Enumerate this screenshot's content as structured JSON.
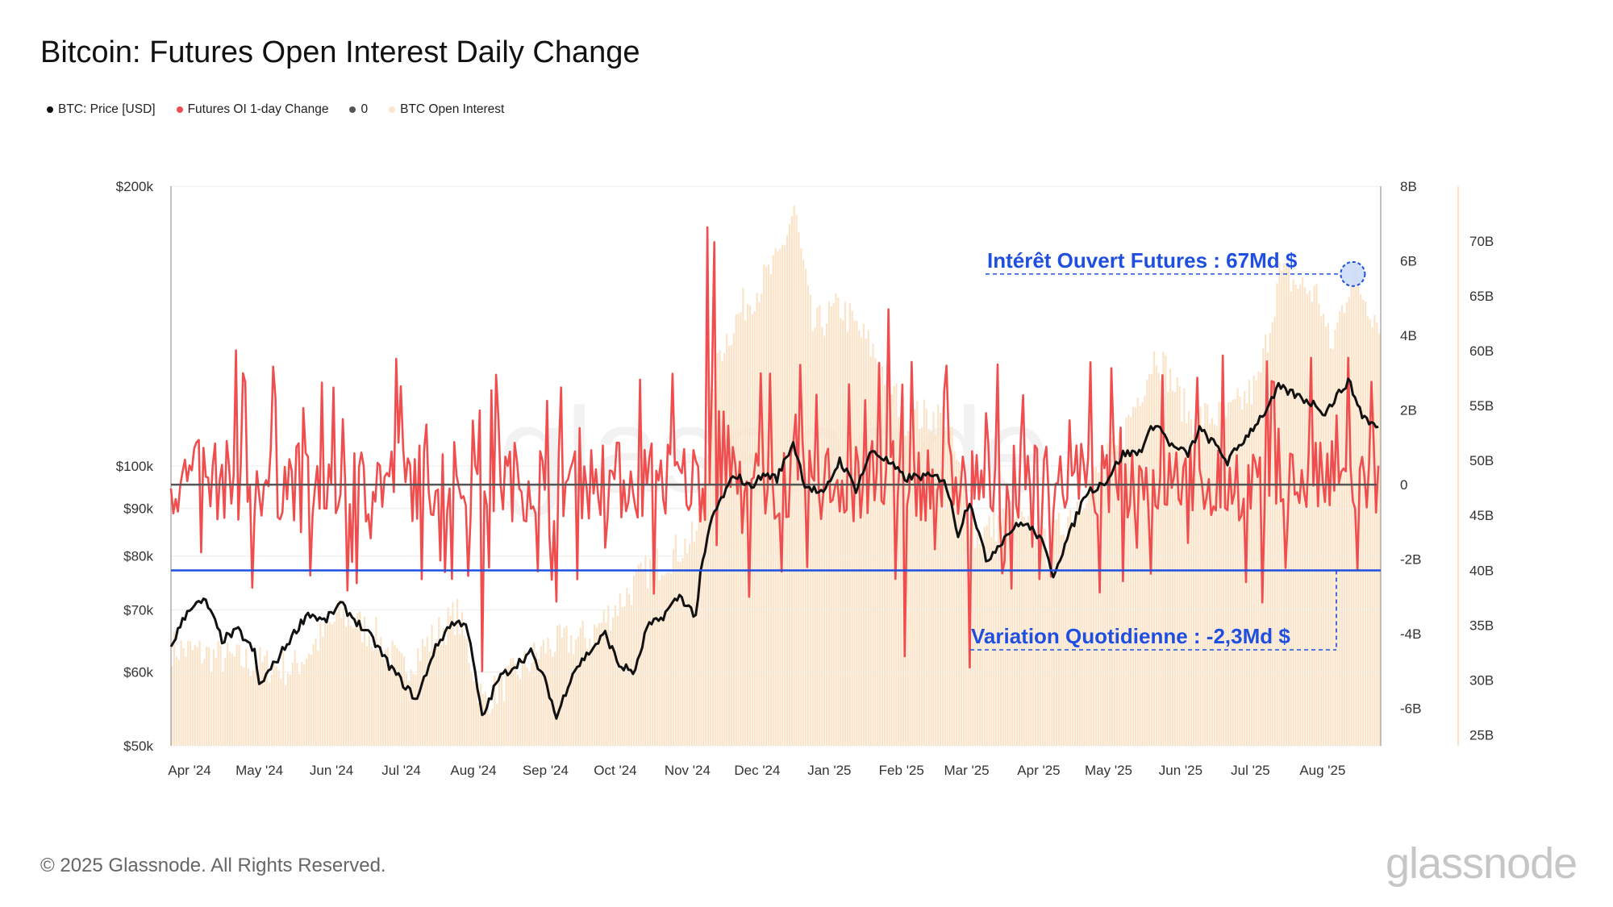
{
  "title": "Bitcoin: Futures Open Interest Daily Change",
  "legend": [
    {
      "label": "BTC: Price [USD]",
      "color": "#111111"
    },
    {
      "label": "Futures OI 1-day Change",
      "color": "#f04e4e"
    },
    {
      "label": "0",
      "color": "#555555"
    },
    {
      "label": "BTC Open Interest",
      "color": "#fbe6cf"
    }
  ],
  "footer": "© 2025 Glassnode. All Rights Reserved.",
  "watermark": "glassnode",
  "colors": {
    "price": "#111111",
    "oi_change": "#f04e4e",
    "zero": "#555555",
    "open_interest": "#fbe3c8",
    "annotation": "#1f4fe0"
  },
  "chart_data": {
    "type": "line",
    "x_axis": {
      "type": "date",
      "range": [
        "2024-03-24",
        "2025-08-26"
      ],
      "tick_labels": [
        "Apr '24",
        "May '24",
        "Jun '24",
        "Jul '24",
        "Aug '24",
        "Sep '24",
        "Oct '24",
        "Nov '24",
        "Dec '24",
        "Jan '25",
        "Feb '25",
        "Mar '25",
        "Apr '25",
        "May '25",
        "Jun '25",
        "Jul '25",
        "Aug '25"
      ],
      "tick_dates": [
        "2024-04-01",
        "2024-05-01",
        "2024-06-01",
        "2024-07-01",
        "2024-08-01",
        "2024-09-01",
        "2024-10-01",
        "2024-11-01",
        "2024-12-01",
        "2025-01-01",
        "2025-02-01",
        "2025-03-01",
        "2025-04-01",
        "2025-05-01",
        "2025-06-01",
        "2025-07-01",
        "2025-08-01"
      ]
    },
    "y_axis_left": {
      "label": "BTC: Price [USD]",
      "scale": "log",
      "range": [
        50000,
        200000
      ],
      "ticks": [
        50000,
        60000,
        70000,
        80000,
        90000,
        100000,
        200000
      ],
      "tick_labels": [
        "$50k",
        "$60k",
        "$70k",
        "$80k",
        "$90k",
        "$100k",
        "$200k"
      ]
    },
    "y_axis_right1": {
      "label": "Futures OI 1-day Change",
      "range": [
        -7,
        8
      ],
      "unit": "B",
      "ticks": [
        -6,
        -4,
        -2,
        0,
        2,
        4,
        6,
        8
      ],
      "tick_labels": [
        "-6B",
        "-4B",
        "-2B",
        "0",
        "2B",
        "4B",
        "6B",
        "8B"
      ]
    },
    "y_axis_right2": {
      "label": "BTC Open Interest",
      "range": [
        24,
        75
      ],
      "unit": "B",
      "ticks": [
        25,
        30,
        35,
        40,
        45,
        50,
        55,
        60,
        65,
        70
      ],
      "tick_labels": [
        "25B",
        "30B",
        "35B",
        "40B",
        "45B",
        "50B",
        "55B",
        "60B",
        "65B",
        "70B"
      ]
    },
    "series": [
      {
        "name": "BTC: Price [USD]",
        "type": "line",
        "axis": "left",
        "points": [
          [
            "2024-03-24",
            64000
          ],
          [
            "2024-04-01",
            70500
          ],
          [
            "2024-04-08",
            71500
          ],
          [
            "2024-04-15",
            65000
          ],
          [
            "2024-04-22",
            66500
          ],
          [
            "2024-04-29",
            63000
          ],
          [
            "2024-05-01",
            58000
          ],
          [
            "2024-05-08",
            61500
          ],
          [
            "2024-05-15",
            65500
          ],
          [
            "2024-05-22",
            69500
          ],
          [
            "2024-05-29",
            68000
          ],
          [
            "2024-06-05",
            71000
          ],
          [
            "2024-06-12",
            68000
          ],
          [
            "2024-06-19",
            65000
          ],
          [
            "2024-06-26",
            61000
          ],
          [
            "2024-07-04",
            57500
          ],
          [
            "2024-07-08",
            56000
          ],
          [
            "2024-07-15",
            63000
          ],
          [
            "2024-07-22",
            67500
          ],
          [
            "2024-07-29",
            68000
          ],
          [
            "2024-08-05",
            53500
          ],
          [
            "2024-08-12",
            59000
          ],
          [
            "2024-08-19",
            61000
          ],
          [
            "2024-08-26",
            63000
          ],
          [
            "2024-09-02",
            58000
          ],
          [
            "2024-09-06",
            53500
          ],
          [
            "2024-09-13",
            60000
          ],
          [
            "2024-09-20",
            63000
          ],
          [
            "2024-09-27",
            66000
          ],
          [
            "2024-10-03",
            61000
          ],
          [
            "2024-10-10",
            60000
          ],
          [
            "2024-10-15",
            67000
          ],
          [
            "2024-10-21",
            68500
          ],
          [
            "2024-10-29",
            72500
          ],
          [
            "2024-11-05",
            69000
          ],
          [
            "2024-11-07",
            76000
          ],
          [
            "2024-11-12",
            88000
          ],
          [
            "2024-11-22",
            98000
          ],
          [
            "2024-11-28",
            95000
          ],
          [
            "2024-12-05",
            98000
          ],
          [
            "2024-12-10",
            97000
          ],
          [
            "2024-12-17",
            106000
          ],
          [
            "2024-12-22",
            95500
          ],
          [
            "2024-12-30",
            93000
          ],
          [
            "2025-01-06",
            101500
          ],
          [
            "2025-01-13",
            94500
          ],
          [
            "2025-01-20",
            104000
          ],
          [
            "2025-01-27",
            101000
          ],
          [
            "2025-02-03",
            97000
          ],
          [
            "2025-02-10",
            97500
          ],
          [
            "2025-02-20",
            97000
          ],
          [
            "2025-02-26",
            84500
          ],
          [
            "2025-03-03",
            92000
          ],
          [
            "2025-03-10",
            79000
          ],
          [
            "2025-03-20",
            85000
          ],
          [
            "2025-03-26",
            87000
          ],
          [
            "2025-04-02",
            84000
          ],
          [
            "2025-04-08",
            76500
          ],
          [
            "2025-04-15",
            84500
          ],
          [
            "2025-04-22",
            93500
          ],
          [
            "2025-05-01",
            96500
          ],
          [
            "2025-05-08",
            103000
          ],
          [
            "2025-05-15",
            103500
          ],
          [
            "2025-05-22",
            111500
          ],
          [
            "2025-05-29",
            105000
          ],
          [
            "2025-06-05",
            103000
          ],
          [
            "2025-06-10",
            109500
          ],
          [
            "2025-06-18",
            104500
          ],
          [
            "2025-06-22",
            101000
          ],
          [
            "2025-06-30",
            107500
          ],
          [
            "2025-07-10",
            116000
          ],
          [
            "2025-07-14",
            121500
          ],
          [
            "2025-07-22",
            119000
          ],
          [
            "2025-07-31",
            116000
          ],
          [
            "2025-08-03",
            114000
          ],
          [
            "2025-08-13",
            123500
          ],
          [
            "2025-08-19",
            113500
          ],
          [
            "2025-08-25",
            110000
          ]
        ]
      },
      {
        "name": "Futures OI 1-day Change",
        "type": "line",
        "axis": "right1",
        "peaks": [
          [
            "2024-11-10",
            6.9
          ],
          [
            "2024-11-13",
            6.5
          ],
          [
            "2025-01-27",
            4.7
          ],
          [
            "2024-04-21",
            3.6
          ],
          [
            "2025-07-28",
            3.4
          ],
          [
            "2025-08-13",
            3.4
          ],
          [
            "2025-03-03",
            -4.9
          ],
          [
            "2024-08-05",
            -5.0
          ],
          [
            "2025-02-03",
            -4.6
          ],
          [
            "2025-08-17",
            -2.3
          ]
        ]
      },
      {
        "name": "0",
        "type": "line",
        "axis": "right1",
        "value": 0
      },
      {
        "name": "BTC Open Interest",
        "type": "bar",
        "axis": "right2",
        "points": [
          [
            "2024-03-24",
            33
          ],
          [
            "2024-04-15",
            32
          ],
          [
            "2024-05-15",
            31
          ],
          [
            "2024-06-05",
            36
          ],
          [
            "2024-06-20",
            34
          ],
          [
            "2024-07-01",
            31
          ],
          [
            "2024-07-25",
            36
          ],
          [
            "2024-08-05",
            28
          ],
          [
            "2024-09-01",
            33
          ],
          [
            "2024-09-20",
            34
          ],
          [
            "2024-10-15",
            40
          ],
          [
            "2024-11-05",
            43
          ],
          [
            "2024-11-15",
            60
          ],
          [
            "2024-11-25",
            64
          ],
          [
            "2024-12-10",
            68
          ],
          [
            "2024-12-17",
            73
          ],
          [
            "2024-12-25",
            62
          ],
          [
            "2025-01-06",
            64
          ],
          [
            "2025-01-20",
            60
          ],
          [
            "2025-02-03",
            54
          ],
          [
            "2025-02-20",
            54
          ],
          [
            "2025-03-05",
            43
          ],
          [
            "2025-03-20",
            45
          ],
          [
            "2025-04-05",
            42
          ],
          [
            "2025-04-20",
            47
          ],
          [
            "2025-05-05",
            51
          ],
          [
            "2025-05-22",
            60
          ],
          [
            "2025-06-05",
            54
          ],
          [
            "2025-06-22",
            54
          ],
          [
            "2025-07-05",
            57
          ],
          [
            "2025-07-14",
            67
          ],
          [
            "2025-07-31",
            65
          ],
          [
            "2025-08-05",
            60
          ],
          [
            "2025-08-14",
            67
          ],
          [
            "2025-08-25",
            63
          ]
        ]
      }
    ],
    "annotations": [
      {
        "text": "Intérêt Ouvert Futures : 67Md $",
        "date": "2025-08-14",
        "axis": "right2",
        "value": 67
      },
      {
        "text": "Variation Quotidienne : -2,3Md $",
        "date": "2025-08-17",
        "axis": "right1",
        "value": -2.3
      }
    ]
  }
}
